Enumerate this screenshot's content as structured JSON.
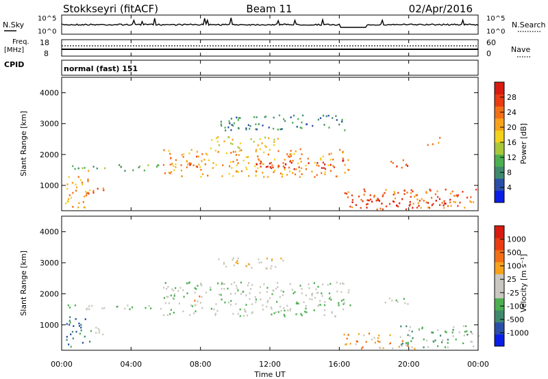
{
  "header": {
    "station": "Stokkseyri (fitACF)",
    "beam": "Beam 11",
    "date": "02/Apr/2016"
  },
  "top_panels": {
    "nsky_label": "N.Sky",
    "nsky_ticks": [
      "10^5",
      "10^0"
    ],
    "nsearch_label": "N.Search",
    "nsearch_ticks": [
      "10^5",
      "10^0"
    ],
    "freq_label": "Freq.",
    "freq_unit": "[MHz]",
    "freq_ticks": [
      "18",
      "8"
    ],
    "nave_label": "Nave",
    "nave_ticks": [
      "60",
      "0"
    ],
    "cpid_label": "CPID",
    "cpid_value": "normal (fast) 151"
  },
  "colors": {
    "power_scale": [
      "#0a1ee6",
      "#2a4fa8",
      "#3f8a6e",
      "#4caf50",
      "#a8c83a",
      "#f2d21c",
      "#f7a21a",
      "#f36f16",
      "#ea3b12",
      "#d81b10"
    ],
    "velocity_scale": [
      "#0a1ee6",
      "#2a4fa8",
      "#3f8a6e",
      "#4caf50",
      "#c8c8c0",
      "#c8c8c0",
      "#f7a21a",
      "#f36f16",
      "#ea3b12",
      "#d81b10"
    ],
    "nsky_line": "#000000"
  },
  "chart_data": [
    {
      "type": "heatmap",
      "title": "Power",
      "xlabel": "Time UT",
      "ylabel": "Slant Range [km]",
      "x_ticks": [
        "00:00",
        "04:00",
        "08:00",
        "12:00",
        "16:00",
        "20:00",
        "00:00"
      ],
      "y_ticks": [
        "1000",
        "2000",
        "3000",
        "4000"
      ],
      "ylim": [
        180,
        4500
      ],
      "xlim_hours": [
        0,
        24
      ],
      "colorbar_label": "Power [dB]",
      "colorbar_ticks": [
        "28",
        "24",
        "20",
        "16",
        "12",
        "8",
        "4"
      ],
      "regions": [
        {
          "t0": 0.2,
          "t1": 1.6,
          "r0": 300,
          "r1": 1500,
          "level": 6
        },
        {
          "t0": 1.1,
          "t1": 2.8,
          "r0": 700,
          "r1": 950,
          "level": 7
        },
        {
          "t0": 0.3,
          "t1": 5.7,
          "r0": 1500,
          "r1": 1700,
          "level": 3
        },
        {
          "t0": 5.8,
          "t1": 16.6,
          "r0": 1300,
          "r1": 2200,
          "level": 6
        },
        {
          "t0": 8.5,
          "t1": 12.5,
          "r0": 2200,
          "r1": 2600,
          "level": 5
        },
        {
          "t0": 7.2,
          "t1": 8.0,
          "r0": 1600,
          "r1": 2100,
          "level": 8
        },
        {
          "t0": 11.0,
          "t1": 16.4,
          "r0": 1550,
          "r1": 1850,
          "level": 9
        },
        {
          "t0": 16.2,
          "t1": 24.0,
          "r0": 250,
          "r1": 900,
          "level": 7
        },
        {
          "t0": 16.5,
          "t1": 22.5,
          "r0": 300,
          "r1": 600,
          "level": 9
        },
        {
          "t0": 18.5,
          "t1": 20.0,
          "r0": 1600,
          "r1": 1900,
          "level": 8
        },
        {
          "t0": 21.0,
          "t1": 21.8,
          "r0": 2300,
          "r1": 2600,
          "level": 6
        },
        {
          "t0": 9.0,
          "t1": 16.5,
          "r0": 2800,
          "r1": 3300,
          "level": 2
        }
      ]
    },
    {
      "type": "heatmap",
      "title": "Velocity",
      "xlabel": "Time UT",
      "ylabel": "Slant Range [km]",
      "x_ticks": [
        "00:00",
        "04:00",
        "08:00",
        "12:00",
        "16:00",
        "20:00",
        "00:00"
      ],
      "y_ticks": [
        "1000",
        "2000",
        "3000",
        "4000"
      ],
      "ylim": [
        180,
        4500
      ],
      "xlim_hours": [
        0,
        24
      ],
      "colorbar_label": "Velocity [m s⁻¹]",
      "colorbar_ticks": [
        "1000",
        "500",
        "100",
        "25",
        "-25",
        "-100",
        "-500",
        "-1000"
      ],
      "regions": [
        {
          "t0": 0.2,
          "t1": 1.6,
          "r0": 300,
          "r1": 1300,
          "level": 2
        },
        {
          "t0": 1.2,
          "t1": 2.8,
          "r0": 700,
          "r1": 950,
          "level": 4
        },
        {
          "t0": 0.3,
          "t1": 5.7,
          "r0": 1500,
          "r1": 1700,
          "level": 4
        },
        {
          "t0": 5.8,
          "t1": 16.6,
          "r0": 1300,
          "r1": 2400,
          "level": 4
        },
        {
          "t0": 7.4,
          "t1": 8.1,
          "r0": 1600,
          "r1": 2100,
          "level": 6
        },
        {
          "t0": 9.0,
          "t1": 13.0,
          "r0": 2800,
          "r1": 3200,
          "level": 5
        },
        {
          "t0": 16.2,
          "t1": 20.5,
          "r0": 250,
          "r1": 750,
          "level": 6
        },
        {
          "t0": 19.5,
          "t1": 24.0,
          "r0": 300,
          "r1": 1000,
          "level": 3
        },
        {
          "t0": 18.5,
          "t1": 20.0,
          "r0": 1600,
          "r1": 1900,
          "level": 4
        }
      ]
    }
  ]
}
